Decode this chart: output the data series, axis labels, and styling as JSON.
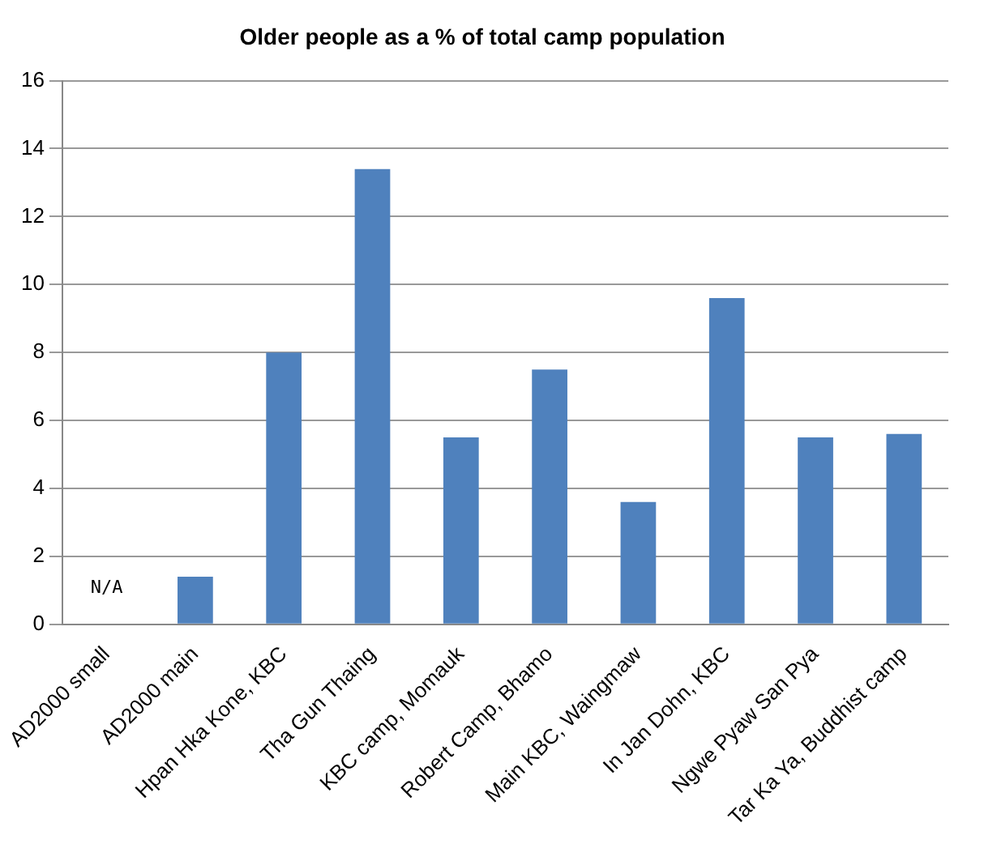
{
  "chart_data": {
    "type": "bar",
    "title": "Older people as a % of total camp population",
    "categories": [
      "AD2000 small",
      "AD2000 main",
      "Hpan Hka Kone, KBC",
      "Tha Gun Thaing",
      "KBC camp, Momauk",
      "Robert Camp, Bhamo",
      "Main KBC, Waingmaw",
      "In Jan Dohn, KBC",
      "Ngwe Pyaw San Pya",
      "Tar Ka Ya, Buddhist camp"
    ],
    "values": [
      null,
      1.4,
      8.0,
      13.4,
      5.5,
      7.5,
      3.6,
      9.6,
      5.5,
      5.6
    ],
    "color": "#4f81bd",
    "ylim": [
      0,
      16
    ],
    "yticks": [
      0,
      2,
      4,
      6,
      8,
      10,
      12,
      14,
      16
    ],
    "grid": "y",
    "annotations": [
      "N/A"
    ]
  }
}
